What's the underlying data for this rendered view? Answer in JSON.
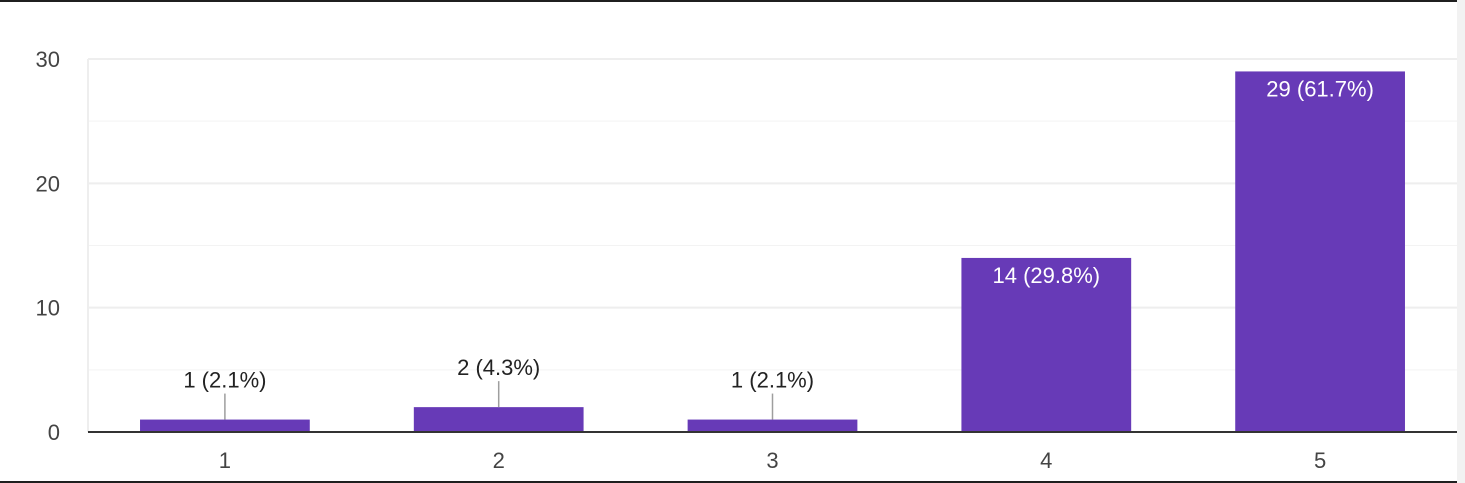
{
  "chart_data": {
    "type": "bar",
    "categories": [
      "1",
      "2",
      "3",
      "4",
      "5"
    ],
    "values": [
      1,
      2,
      1,
      14,
      29
    ],
    "data_labels": [
      "1 (2.1%)",
      "2 (4.3%)",
      "1 (2.1%)",
      "14 (29.8%)",
      "29 (61.7%)"
    ],
    "y_ticks": [
      "0",
      "10",
      "20",
      "30"
    ],
    "ylim": [
      0,
      30
    ],
    "grid": true,
    "minor_grid": true,
    "legend": false,
    "title": "",
    "xlabel": "",
    "ylabel": "",
    "colors": {
      "bar": "#673ab7",
      "grid": "#eeeeee",
      "axis": "#333333",
      "leader": "#9e9e9e",
      "label_inside": "#ffffff",
      "label_outside": "#222222"
    }
  }
}
